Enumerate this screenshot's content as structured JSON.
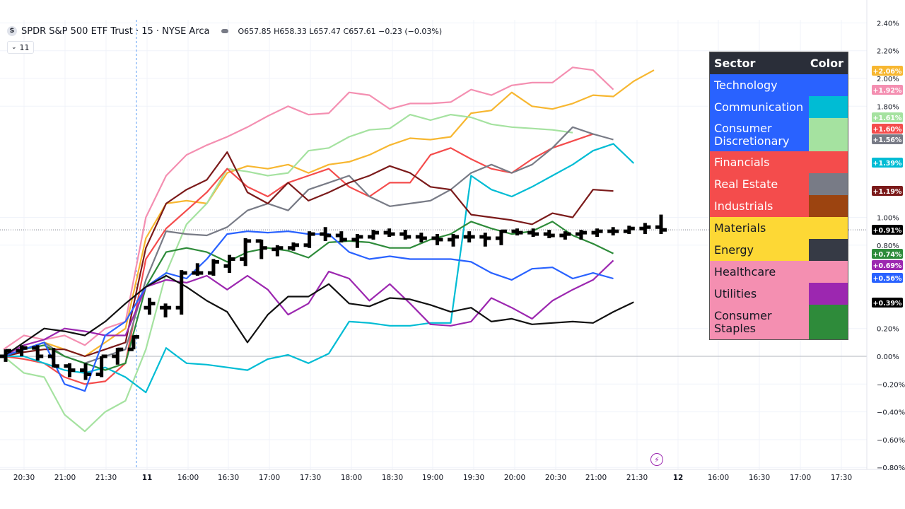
{
  "header": {
    "symbol_logo": "S",
    "title": "SPDR S&P 500 ETF Trust · 15 · NYSE Arca",
    "ohlc": "O657.85 H658.33 L657.47 C657.61 −0.23 (−0.03%)",
    "interval_button": "11",
    "interval_icon": "chevron-down-icon"
  },
  "legend": {
    "header_left": "Sector",
    "header_right": "Color",
    "rows": [
      {
        "name": "Technology",
        "bg": "#2962ff",
        "swatch": "#2962ff"
      },
      {
        "name": "Communication",
        "bg": "#2962ff",
        "swatch": "#00bcd4"
      },
      {
        "name": "Consumer Discretionary",
        "bg": "#2962ff",
        "swatch": "#a5e2a0"
      },
      {
        "name": "Financials",
        "bg": "#f44c4c",
        "swatch": "#f44c4c"
      },
      {
        "name": "Real Estate",
        "bg": "#f44c4c",
        "swatch": "#787b86"
      },
      {
        "name": "Industrials",
        "bg": "#f44c4c",
        "swatch": "#9c4410"
      },
      {
        "name": "Materials",
        "bg": "#fdd835",
        "swatch": "#fdd835",
        "dark": true
      },
      {
        "name": "Energy",
        "bg": "#fdd835",
        "swatch": "#363a45",
        "dark": true
      },
      {
        "name": "Healthcare",
        "bg": "#f48fb1",
        "swatch": "#f48fb1",
        "dark": true
      },
      {
        "name": "Utilities",
        "bg": "#f48fb1",
        "swatch": "#9c27b0",
        "dark": true
      },
      {
        "name": "Consumer Staples",
        "bg": "#f48fb1",
        "swatch": "#2e8b3a",
        "dark": true
      }
    ]
  },
  "chart_data": {
    "type": "line",
    "x_tick_labels": [
      "20:30",
      "21:00",
      "21:30",
      "11",
      "16:00",
      "16:30",
      "17:00",
      "17:30",
      "18:00",
      "18:30",
      "19:00",
      "19:30",
      "20:00",
      "20:30",
      "21:00",
      "21:30",
      "12",
      "16:00",
      "16:30",
      "17:00",
      "17:30"
    ],
    "y_tick_labels": [
      "2.40%",
      "2.20%",
      "2.00%",
      "1.80%",
      "1.00%",
      "0.80%",
      "0.20%",
      "0.00%",
      "−0.20%",
      "−0.40%",
      "−0.60%",
      "−0.80%"
    ],
    "ylim": [
      -0.8,
      2.4
    ],
    "y_ticks": [
      2.4,
      2.2,
      2.0,
      1.8,
      1.0,
      0.8,
      0.2,
      0.0,
      -0.2,
      -0.4,
      -0.6,
      -0.8
    ],
    "grid": true,
    "series": [
      {
        "color": "#f48fb1",
        "values": [
          0.05,
          0.15,
          0.12,
          0.15,
          0.08,
          0.2,
          0.25,
          1.0,
          1.3,
          1.45,
          1.52,
          1.58,
          1.65,
          1.73,
          1.8,
          1.74,
          1.75,
          1.9,
          1.88,
          1.78,
          1.82,
          1.82,
          1.83,
          1.92,
          1.88,
          1.95,
          1.97,
          1.97,
          2.08,
          2.06,
          1.92
        ],
        "last_label": "+1.92%"
      },
      {
        "color": "#f7b731",
        "values": [
          0.0,
          0.05,
          0.1,
          0.05,
          0.0,
          0.1,
          0.2,
          0.85,
          1.1,
          1.12,
          1.1,
          1.32,
          1.37,
          1.35,
          1.38,
          1.32,
          1.38,
          1.4,
          1.45,
          1.52,
          1.57,
          1.56,
          1.58,
          1.75,
          1.77,
          1.9,
          1.8,
          1.78,
          1.82,
          1.88,
          1.87,
          1.98,
          2.06
        ],
        "last_label": "+2.06%"
      },
      {
        "color": "#a5e2a0",
        "values": [
          0.0,
          -0.12,
          -0.15,
          -0.42,
          -0.54,
          -0.4,
          -0.32,
          0.05,
          0.6,
          0.95,
          1.1,
          1.35,
          1.33,
          1.3,
          1.32,
          1.48,
          1.5,
          1.58,
          1.63,
          1.64,
          1.74,
          1.7,
          1.74,
          1.72,
          1.67,
          1.65,
          1.64,
          1.63,
          1.61
        ],
        "last_label": "+1.61%"
      },
      {
        "color": "#f44c4c",
        "values": [
          0.0,
          -0.02,
          -0.05,
          -0.15,
          -0.2,
          -0.18,
          -0.05,
          0.7,
          0.92,
          1.05,
          1.18,
          1.35,
          1.22,
          1.15,
          1.25,
          1.3,
          1.35,
          1.22,
          1.15,
          1.25,
          1.25,
          1.45,
          1.5,
          1.42,
          1.35,
          1.32,
          1.42,
          1.5,
          1.55,
          1.6
        ],
        "last_label": "+1.60%"
      },
      {
        "color": "#787b86",
        "values": [
          0.0,
          0.05,
          0.1,
          0.0,
          -0.05,
          0.0,
          0.05,
          0.55,
          0.9,
          0.88,
          0.87,
          0.93,
          1.05,
          1.1,
          1.05,
          1.2,
          1.25,
          1.3,
          1.15,
          1.08,
          1.1,
          1.12,
          1.2,
          1.32,
          1.38,
          1.32,
          1.38,
          1.5,
          1.65,
          1.6,
          1.56
        ],
        "last_label": "+1.56%"
      },
      {
        "color": "#00bcd4",
        "values": [
          0.0,
          0.0,
          -0.05,
          -0.1,
          -0.12,
          -0.08,
          -0.15,
          -0.26,
          0.06,
          -0.05,
          -0.06,
          -0.08,
          -0.1,
          -0.02,
          0.01,
          -0.05,
          0.02,
          0.25,
          0.24,
          0.22,
          0.22,
          0.24,
          0.24,
          1.3,
          1.2,
          1.15,
          1.22,
          1.3,
          1.38,
          1.48,
          1.53,
          1.39
        ],
        "last_label": "+1.39%"
      },
      {
        "color": "#7b1a1a",
        "values": [
          0.0,
          0.03,
          0.05,
          0.05,
          0.0,
          0.05,
          0.1,
          0.78,
          1.1,
          1.2,
          1.27,
          1.47,
          1.18,
          1.1,
          1.25,
          1.12,
          1.18,
          1.25,
          1.3,
          1.37,
          1.32,
          1.22,
          1.2,
          1.02,
          1.0,
          0.98,
          0.95,
          1.03,
          1.0,
          1.2,
          1.19
        ],
        "last_label": "+1.19%"
      },
      {
        "color": "#2e8b3a",
        "values": [
          0.0,
          0.05,
          0.08,
          0.0,
          -0.05,
          -0.1,
          -0.05,
          0.5,
          0.75,
          0.78,
          0.75,
          0.68,
          0.75,
          0.78,
          0.76,
          0.71,
          0.82,
          0.83,
          0.82,
          0.78,
          0.78,
          0.84,
          0.88,
          0.97,
          0.92,
          0.88,
          0.9,
          0.97,
          0.87,
          0.81,
          0.74
        ],
        "last_label": "+0.74%"
      },
      {
        "color": "#9c27b0",
        "values": [
          0.0,
          0.08,
          0.12,
          0.2,
          0.18,
          0.15,
          0.15,
          0.5,
          0.55,
          0.53,
          0.58,
          0.48,
          0.58,
          0.48,
          0.3,
          0.38,
          0.61,
          0.56,
          0.4,
          0.52,
          0.38,
          0.23,
          0.22,
          0.25,
          0.42,
          0.35,
          0.27,
          0.4,
          0.48,
          0.55,
          0.69
        ],
        "last_label": "+0.69%"
      },
      {
        "color": "#2962ff",
        "values": [
          0.0,
          0.05,
          0.1,
          -0.2,
          -0.25,
          0.15,
          0.25,
          0.5,
          0.6,
          0.56,
          0.7,
          0.88,
          0.9,
          0.89,
          0.9,
          0.88,
          0.88,
          0.75,
          0.7,
          0.72,
          0.7,
          0.7,
          0.7,
          0.68,
          0.6,
          0.55,
          0.63,
          0.64,
          0.56,
          0.6,
          0.56
        ],
        "last_label": "+0.56%"
      },
      {
        "color": "#111111",
        "values": [
          0.0,
          0.1,
          0.2,
          0.18,
          0.15,
          0.25,
          0.38,
          0.5,
          0.58,
          0.5,
          0.4,
          0.32,
          0.1,
          0.3,
          0.43,
          0.43,
          0.52,
          0.38,
          0.36,
          0.42,
          0.41,
          0.37,
          0.32,
          0.35,
          0.25,
          0.27,
          0.23,
          0.24,
          0.25,
          0.24,
          0.32,
          0.39
        ],
        "last_label": "+0.39%"
      }
    ],
    "spy_last_label": "+0.91%",
    "label_colors": {
      "+2.06%": "#f7b731",
      "+1.92%": "#f48fb1",
      "+1.61%": "#a5e2a0",
      "+1.60%": "#f44c4c",
      "+1.56%": "#787b86",
      "+1.39%": "#00bcd4",
      "+1.19%": "#7b1a1a",
      "+0.91%": "#000000",
      "+0.74%": "#2e8b3a",
      "+0.69%": "#9c27b0",
      "+0.56%": "#2962ff",
      "+0.39%": "#000000"
    }
  }
}
